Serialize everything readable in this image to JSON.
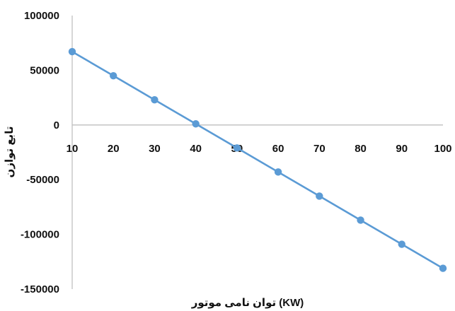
{
  "chart_data": {
    "type": "line",
    "xlabel": "توان نامی موتور (KW)",
    "ylabel": "تابع توازن",
    "x": [
      10,
      20,
      30,
      40,
      50,
      60,
      70,
      80,
      90,
      100
    ],
    "xlim": [
      10,
      100
    ],
    "ylim": [
      -150000,
      100000
    ],
    "yticks": [
      100000,
      50000,
      0,
      -50000,
      -100000,
      -150000
    ],
    "grid": false,
    "legend": "none",
    "series": [
      {
        "values": [
          67000,
          45000,
          23000,
          1000,
          -21000,
          -43000,
          -65000,
          -87000,
          -109000,
          -131000
        ],
        "color": "#5b9bd5"
      }
    ],
    "axis_color": "#bfbfbf"
  }
}
